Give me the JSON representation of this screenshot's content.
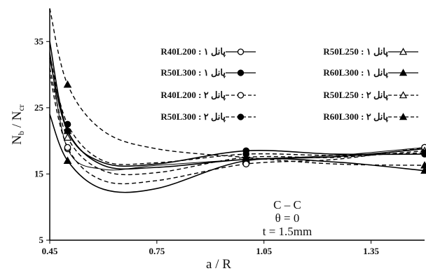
{
  "chart_data": {
    "type": "line",
    "xlabel": "a / R",
    "ylabel": "N_b / N_cr",
    "xlim": [
      0.45,
      1.5
    ],
    "ylim": [
      5,
      40
    ],
    "xticks": [
      "0.45",
      "0.75",
      "1.05",
      "1.35"
    ],
    "yticks": [
      "5",
      "15",
      "25",
      "35"
    ],
    "grid": false,
    "annotation": [
      "C – C",
      "θ = 0",
      "t = 1.5mm"
    ],
    "series": [
      {
        "name": "R40L200 : پانل ۱",
        "linestyle": "solid",
        "marker": "open-circle",
        "x": [
          0.45,
          0.5,
          0.6,
          0.75,
          1.0,
          1.25,
          1.5
        ],
        "y": [
          33.5,
          18.8,
          15.7,
          16.3,
          17.2,
          17.8,
          19.0
        ]
      },
      {
        "name": "R50L250 : پانل ۱",
        "linestyle": "solid",
        "marker": "open-triangle",
        "x": [
          0.45,
          0.5,
          0.6,
          0.75,
          1.0,
          1.25,
          1.5
        ],
        "y": [
          32.5,
          21.5,
          16.3,
          16.0,
          17.2,
          17.6,
          18.8
        ]
      },
      {
        "name": "R50L300 : پانل ۱",
        "linestyle": "solid",
        "marker": "filled-circle",
        "x": [
          0.45,
          0.5,
          0.6,
          0.75,
          1.0,
          1.25,
          1.5
        ],
        "y": [
          35.0,
          21.5,
          16.7,
          16.5,
          18.5,
          18.0,
          18.0
        ]
      },
      {
        "name": "R60L300 : پانل ۱",
        "linestyle": "solid",
        "marker": "filled-triangle",
        "x": [
          0.45,
          0.5,
          0.6,
          0.75,
          1.0,
          1.25,
          1.5
        ],
        "y": [
          24.0,
          17.0,
          12.7,
          12.8,
          17.0,
          16.8,
          15.5
        ]
      },
      {
        "name": "R40L200 : پانل ۲",
        "linestyle": "dashed",
        "marker": "open-circle",
        "x": [
          0.45,
          0.5,
          0.6,
          0.75,
          1.0,
          1.25,
          1.5
        ],
        "y": [
          30.0,
          19.0,
          14.0,
          14.0,
          16.5,
          17.2,
          19.0
        ]
      },
      {
        "name": "R50L250 : پانل ۲",
        "linestyle": "dashed",
        "marker": "open-triangle",
        "x": [
          0.45,
          0.5,
          0.6,
          0.75,
          1.0,
          1.25,
          1.5
        ],
        "y": [
          31.0,
          20.5,
          15.5,
          15.2,
          17.5,
          17.5,
          18.5
        ]
      },
      {
        "name": "R50L300 : پانل ۲",
        "linestyle": "dashed",
        "marker": "filled-circle",
        "x": [
          0.45,
          0.5,
          0.6,
          0.75,
          1.0,
          1.25,
          1.5
        ],
        "y": [
          33.0,
          22.5,
          17.0,
          16.7,
          18.0,
          17.8,
          18.2
        ]
      },
      {
        "name": "R60L300 : پانل ۲",
        "linestyle": "dashed",
        "marker": "filled-triangle",
        "x": [
          0.45,
          0.5,
          0.6,
          0.75,
          1.0,
          1.25,
          1.5
        ],
        "y": [
          40.0,
          28.5,
          21.5,
          18.8,
          17.5,
          16.5,
          16.3
        ]
      }
    ]
  }
}
